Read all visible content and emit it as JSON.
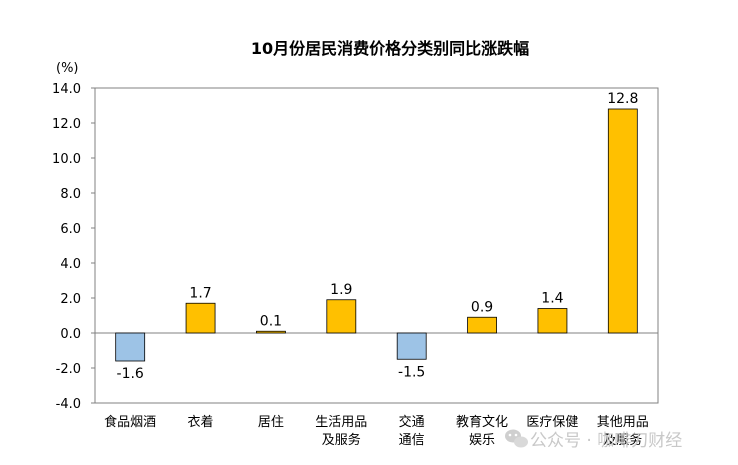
{
  "chart_data": {
    "type": "bar",
    "title": "10月份居民消费价格分类别同比涨跌幅",
    "unit_label": "(%)",
    "categories": [
      [
        "食品烟酒"
      ],
      [
        "衣着"
      ],
      [
        "居住"
      ],
      [
        "生活用品",
        "及服务"
      ],
      [
        "交通",
        "通信"
      ],
      [
        "教育文化",
        "娱乐"
      ],
      [
        "医疗保健"
      ],
      [
        "其他用品",
        "及服务"
      ]
    ],
    "values": [
      -1.6,
      1.7,
      0.1,
      1.9,
      -1.5,
      0.9,
      1.4,
      12.8
    ],
    "value_labels": [
      "-1.6",
      "1.7",
      "0.1",
      "1.9",
      "-1.5",
      "0.9",
      "1.4",
      "12.8"
    ],
    "ylim": [
      -4.0,
      14.0
    ],
    "yticks": [
      14.0,
      12.0,
      10.0,
      8.0,
      6.0,
      4.0,
      2.0,
      0.0,
      -2.0,
      -4.0
    ],
    "ytick_labels": [
      "14.0",
      "12.0",
      "10.0",
      "8.0",
      "6.0",
      "4.0",
      "2.0",
      "0.0",
      "-2.0",
      "-4.0"
    ],
    "grid": false,
    "colors": {
      "positive": "#FFC000",
      "negative": "#9DC3E6",
      "bar_edge": "#000000"
    }
  },
  "watermark": {
    "icon": "wechat-icon",
    "text": "公众号 · 咖啡刀财经"
  }
}
